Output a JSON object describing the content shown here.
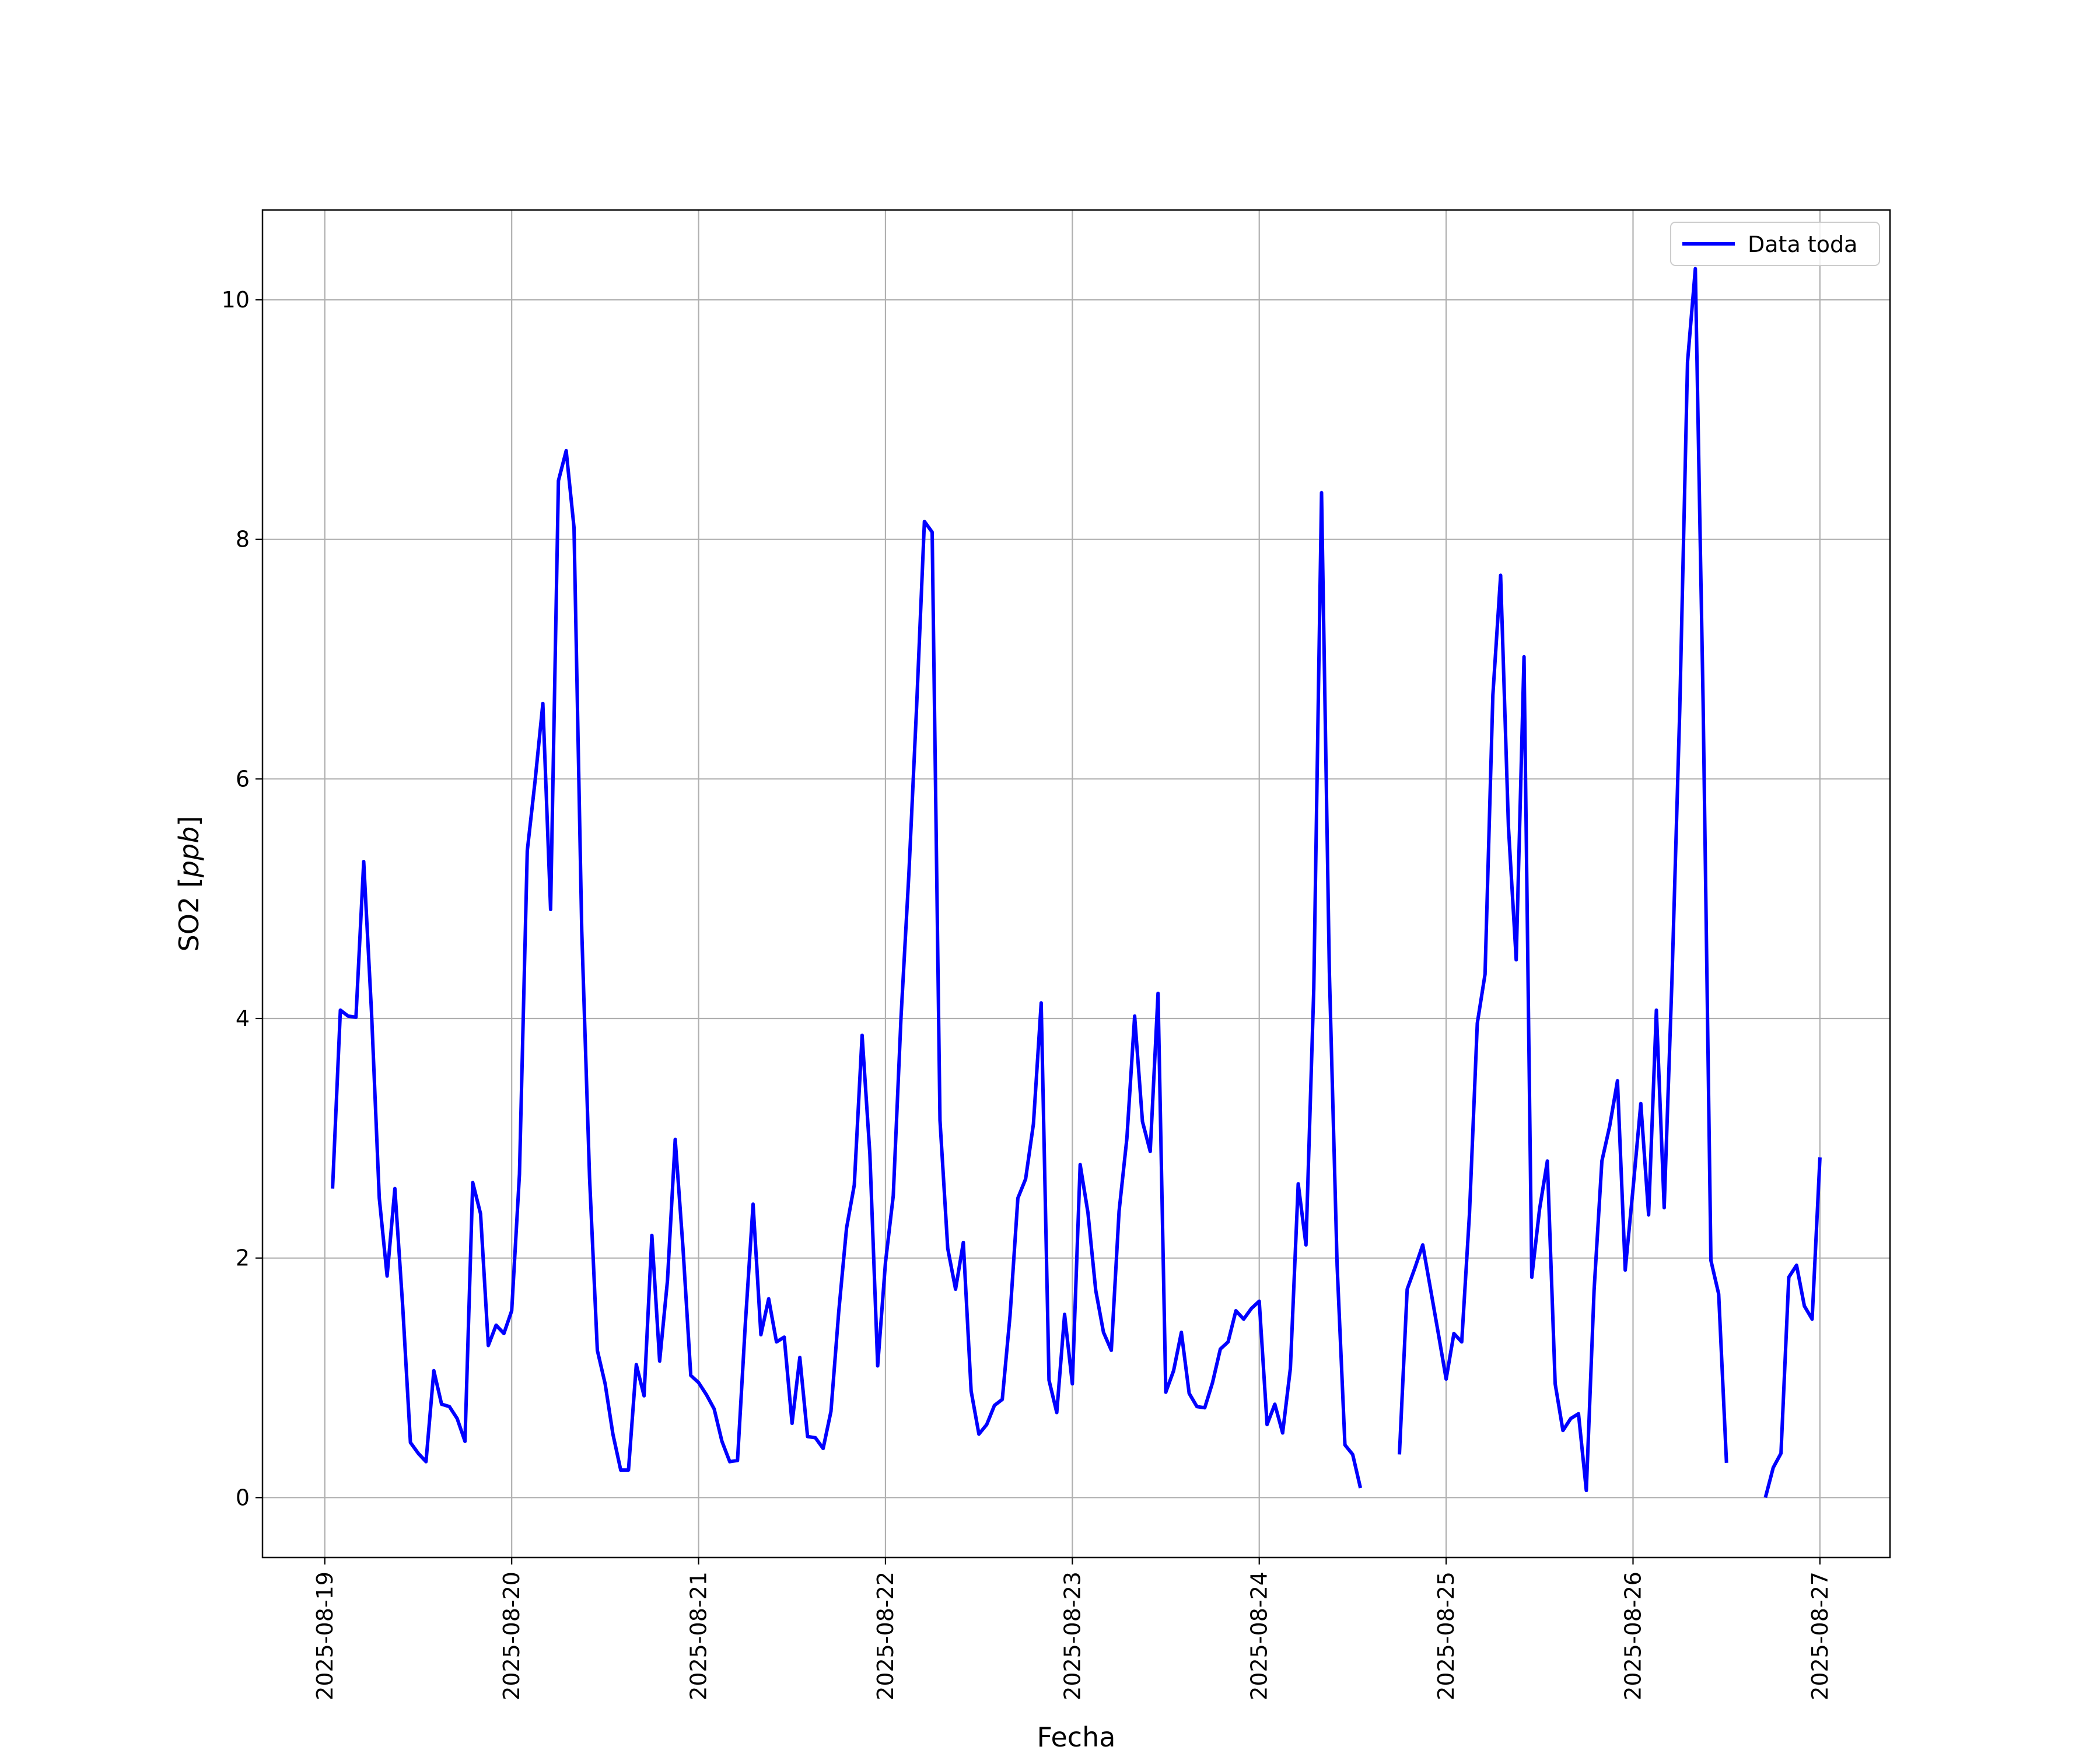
{
  "chart_data": {
    "type": "line",
    "xlabel": "Fecha",
    "ylabel": "SO2 [ppb]",
    "ylabel_unit_italic": "ppb",
    "xlim": [
      "2025-08-18T16:00",
      "2025-08-27T09:00"
    ],
    "ylim": [
      -0.5,
      10.75
    ],
    "yticks": [
      0,
      2,
      4,
      6,
      8,
      10
    ],
    "xticks": [
      "2025-08-19",
      "2025-08-20",
      "2025-08-21",
      "2025-08-22",
      "2025-08-23",
      "2025-08-24",
      "2025-08-25",
      "2025-08-26",
      "2025-08-27"
    ],
    "grid": true,
    "legend_position": "top-right",
    "series": [
      {
        "name": "Data toda",
        "color": "#0000ff",
        "x_start": "2025-08-19T01:00",
        "x_step_hours": 1,
        "values": [
          2.58,
          4.07,
          4.02,
          4.01,
          5.31,
          4.05,
          2.5,
          1.85,
          2.58,
          1.6,
          0.46,
          0.37,
          0.3,
          1.06,
          0.78,
          0.76,
          0.66,
          0.47,
          2.63,
          2.37,
          1.27,
          1.44,
          1.37,
          1.56,
          2.7,
          5.4,
          5.98,
          6.63,
          4.91,
          8.49,
          8.74,
          8.1,
          4.73,
          2.67,
          1.23,
          0.95,
          0.53,
          0.23,
          0.23,
          1.11,
          0.85,
          2.19,
          1.14,
          1.81,
          2.99,
          2.08,
          1.02,
          0.96,
          0.86,
          0.74,
          0.47,
          0.3,
          0.31,
          1.45,
          2.45,
          1.36,
          1.66,
          1.3,
          1.34,
          0.62,
          1.17,
          0.51,
          0.5,
          0.41,
          0.72,
          1.55,
          2.25,
          2.61,
          3.86,
          2.87,
          1.1,
          1.96,
          2.52,
          4.01,
          5.2,
          6.6,
          8.15,
          8.06,
          3.15,
          2.08,
          1.74,
          2.13,
          0.89,
          0.53,
          0.61,
          0.77,
          0.82,
          1.52,
          2.5,
          2.66,
          3.12,
          4.13,
          0.98,
          0.71,
          1.53,
          0.95,
          2.78,
          2.38,
          1.73,
          1.38,
          1.23,
          2.39,
          3.0,
          4.02,
          3.14,
          2.89,
          4.21,
          0.88,
          1.06,
          1.38,
          0.87,
          0.76,
          0.75,
          0.96,
          1.24,
          1.3,
          1.56,
          1.49,
          1.58,
          1.64,
          0.61,
          0.78,
          0.54,
          1.08,
          2.62,
          2.11,
          4.25,
          8.39,
          4.39,
          1.94,
          0.44,
          0.36,
          0.08,
          null,
          null,
          null,
          null,
          0.36,
          1.74,
          1.92,
          2.11,
          1.74,
          1.37,
          0.99,
          1.37,
          1.3,
          2.37,
          3.96,
          4.37,
          6.7,
          7.7,
          5.6,
          4.49,
          7.02,
          1.84,
          2.41,
          2.81,
          0.95,
          0.56,
          0.66,
          0.7,
          0.06,
          1.73,
          2.81,
          3.1,
          3.48,
          1.9,
          2.58,
          3.29,
          2.36,
          4.07,
          2.42,
          4.32,
          6.58,
          9.48,
          10.26,
          6.64,
          1.98,
          1.7,
          0.29,
          null,
          null,
          null,
          null,
          0.0,
          0.25,
          0.37,
          1.84,
          1.94,
          1.6,
          1.49,
          2.84
        ]
      }
    ]
  }
}
